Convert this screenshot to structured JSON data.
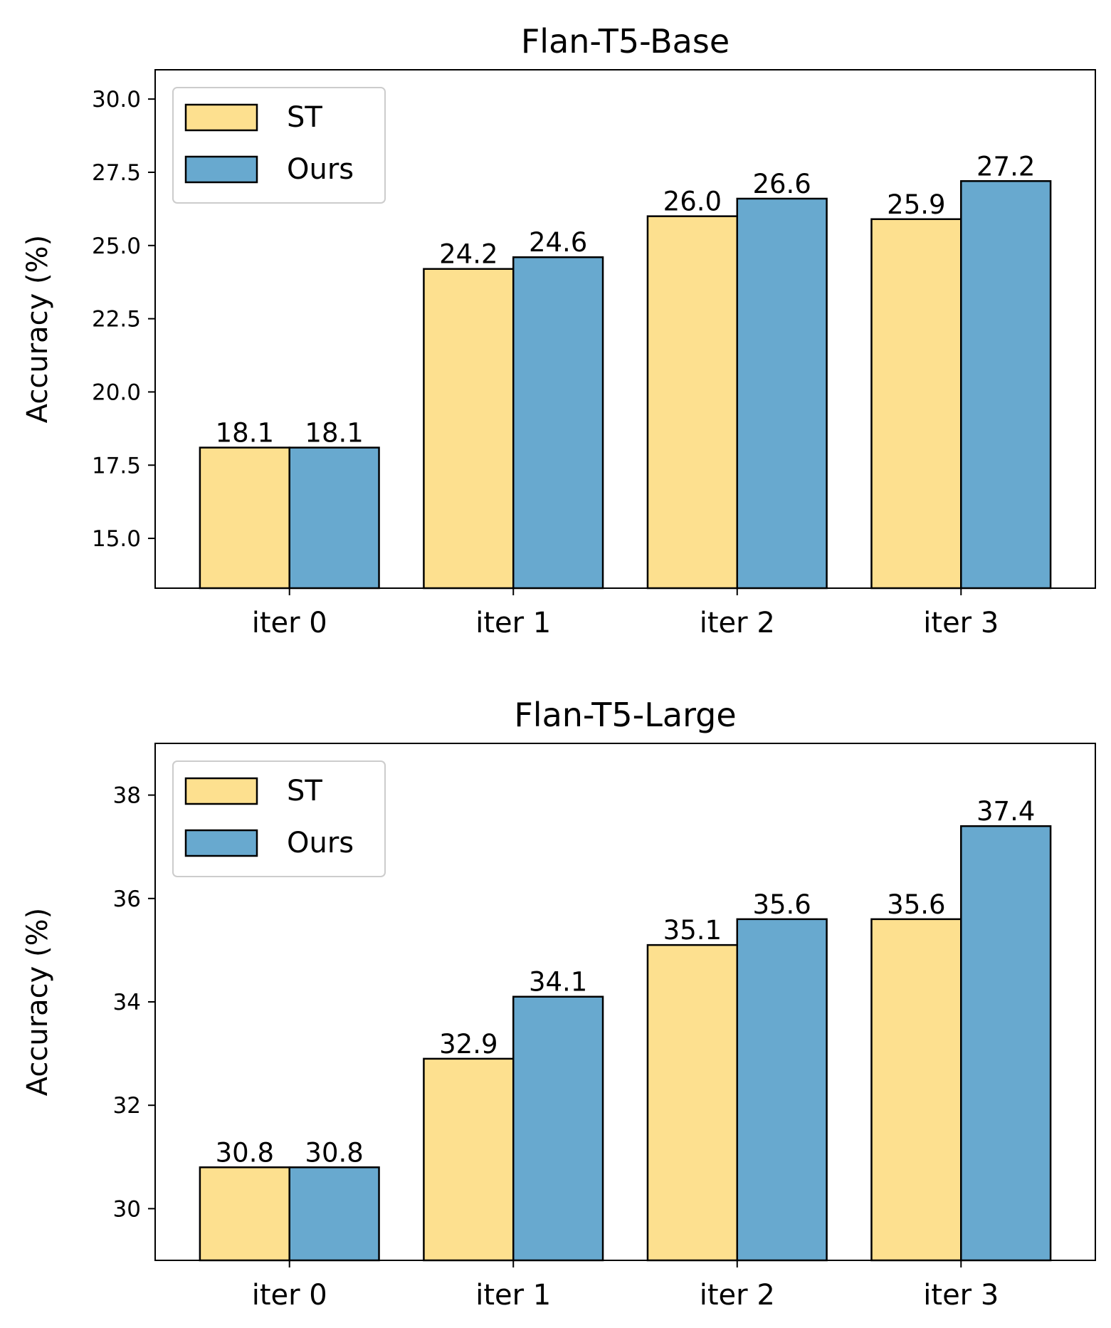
{
  "colors": {
    "st": "#fde08f",
    "ours": "#68a9cf",
    "edge": "#000000",
    "legend_border": "#cccccc",
    "background": "#ffffff"
  },
  "chart_data": [
    {
      "type": "bar",
      "title": "Flan-T5-Base",
      "xlabel": "",
      "ylabel": "Accuracy (%)",
      "categories": [
        "iter 0",
        "iter 1",
        "iter 2",
        "iter 3"
      ],
      "series": [
        {
          "name": "ST",
          "values": [
            18.1,
            24.2,
            26.0,
            25.9
          ],
          "labels": [
            "18.1",
            "24.2",
            "26.0",
            "25.9"
          ]
        },
        {
          "name": "Ours",
          "values": [
            18.1,
            24.6,
            26.6,
            27.2
          ],
          "labels": [
            "18.1",
            "24.6",
            "26.6",
            "27.2"
          ]
        }
      ],
      "ylim": [
        13.3,
        31.0
      ],
      "yticks": [
        15.0,
        17.5,
        20.0,
        22.5,
        25.0,
        27.5,
        30.0
      ],
      "ytick_labels": [
        "15.0",
        "17.5",
        "20.0",
        "22.5",
        "25.0",
        "27.5",
        "30.0"
      ],
      "grid": false,
      "legend_position": "upper-left"
    },
    {
      "type": "bar",
      "title": "Flan-T5-Large",
      "xlabel": "",
      "ylabel": "Accuracy (%)",
      "categories": [
        "iter 0",
        "iter 1",
        "iter 2",
        "iter 3"
      ],
      "series": [
        {
          "name": "ST",
          "values": [
            30.8,
            32.9,
            35.1,
            35.6
          ],
          "labels": [
            "30.8",
            "32.9",
            "35.1",
            "35.6"
          ]
        },
        {
          "name": "Ours",
          "values": [
            30.8,
            34.1,
            35.6,
            37.4
          ],
          "labels": [
            "30.8",
            "34.1",
            "35.6",
            "37.4"
          ]
        }
      ],
      "ylim": [
        29.0,
        39.0
      ],
      "yticks": [
        30,
        32,
        34,
        36,
        38
      ],
      "ytick_labels": [
        "30",
        "32",
        "34",
        "36",
        "38"
      ],
      "grid": false,
      "legend_position": "upper-left"
    }
  ]
}
